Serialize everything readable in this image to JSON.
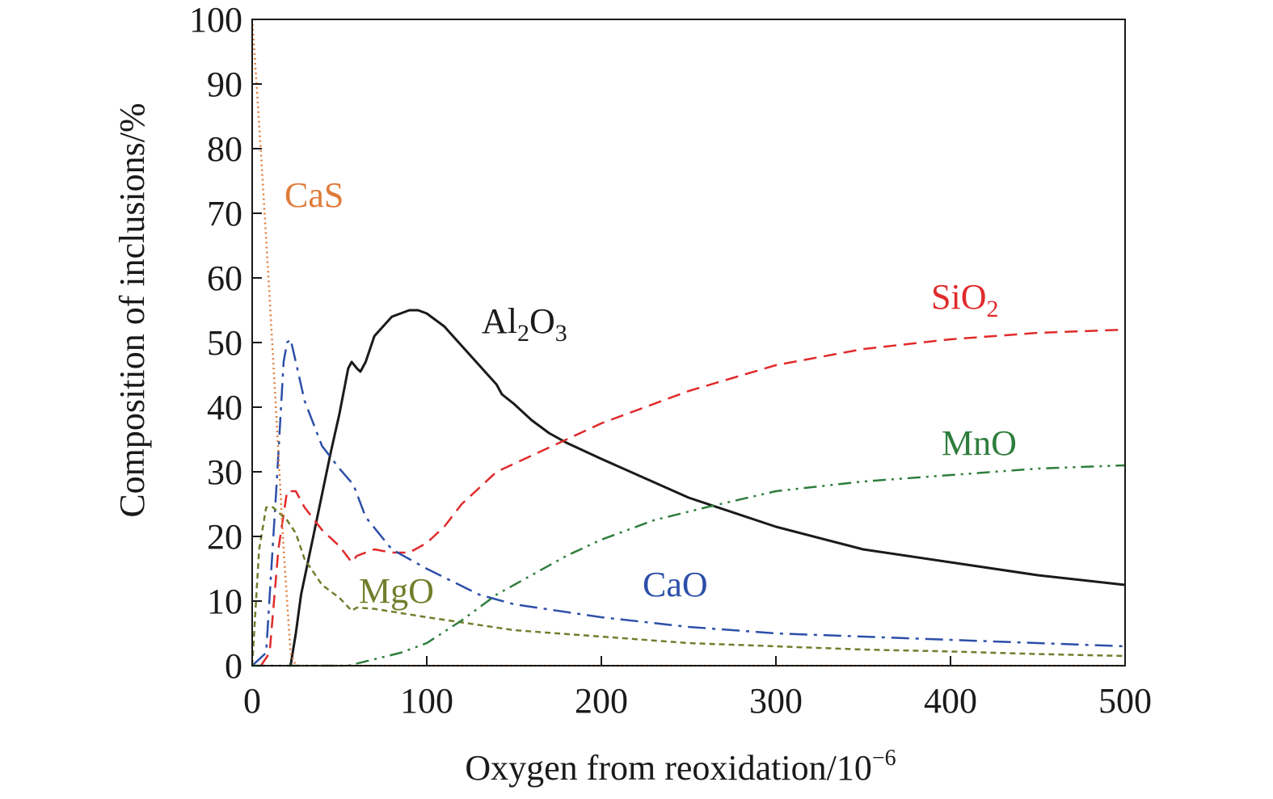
{
  "chart_data": {
    "type": "line",
    "title": "",
    "xlabel": "Oxygen from reoxidation/10",
    "xlabel_sup": "−6",
    "ylabel": "Composition of inclusions/%",
    "xlim": [
      0,
      500
    ],
    "ylim": [
      0,
      100
    ],
    "x_ticks": [
      "0",
      "100",
      "200",
      "300",
      "400",
      "500"
    ],
    "y_ticks": [
      "0",
      "10",
      "20",
      "30",
      "40",
      "50",
      "60",
      "70",
      "80",
      "90",
      "100"
    ],
    "grid": false,
    "legend": "inline labels",
    "series": [
      {
        "name": "Al2O3",
        "label_main": "Al",
        "label_sub1": "2",
        "label_mid": "O",
        "label_sub2": "3",
        "color": "#1a1a1a",
        "dash": "solid",
        "x": [
          22,
          25,
          28,
          35,
          45,
          50,
          55,
          57,
          60,
          62,
          65,
          70,
          80,
          90,
          95,
          100,
          110,
          120,
          130,
          140,
          143,
          150,
          160,
          170,
          180,
          200,
          250,
          300,
          350,
          400,
          450,
          500
        ],
        "y": [
          0,
          5,
          11,
          20,
          33,
          39,
          46,
          47,
          46,
          45.5,
          47,
          51,
          54,
          55,
          55,
          54.5,
          52.5,
          49.5,
          46.5,
          43.5,
          42,
          40.5,
          38,
          36,
          34.5,
          32,
          26,
          21.5,
          18,
          16,
          14,
          12.5
        ]
      },
      {
        "name": "SiO2",
        "label_main": "SiO",
        "label_sub1": "2",
        "color": "#e02a2a",
        "dash": "dashed",
        "x": [
          5,
          10,
          15,
          20,
          25,
          30,
          40,
          50,
          57,
          60,
          70,
          80,
          90,
          100,
          110,
          120,
          130,
          140,
          160,
          180,
          200,
          250,
          300,
          350,
          400,
          450,
          500
        ],
        "y": [
          0,
          2,
          18,
          27,
          27,
          24.5,
          21,
          18.5,
          16,
          17,
          18,
          17.5,
          17.5,
          19,
          21.5,
          25,
          27.5,
          30,
          32.5,
          35,
          37.5,
          42.5,
          46.5,
          49,
          50.5,
          51.5,
          52
        ]
      },
      {
        "name": "CaO",
        "label_main": "CaO",
        "color": "#2c4fa8",
        "dash": "dashdot",
        "x": [
          0,
          8,
          14,
          18,
          20,
          22,
          25,
          30,
          40,
          50,
          58,
          65,
          80,
          100,
          130,
          150,
          200,
          250,
          300,
          350,
          400,
          450,
          500
        ],
        "y": [
          0,
          2,
          28,
          47,
          50,
          50.5,
          47,
          41,
          34,
          30.5,
          28,
          23,
          18,
          15,
          11,
          9.5,
          7.5,
          6,
          5,
          4.5,
          4,
          3.5,
          3
        ]
      },
      {
        "name": "MgO",
        "label_main": "MgO",
        "color": "#6f7f2c",
        "dash": "dotted-dash",
        "x": [
          0,
          4,
          8,
          12,
          16,
          20,
          25,
          30,
          40,
          50,
          57,
          60,
          70,
          100,
          150,
          200,
          250,
          300,
          350,
          400,
          450,
          500
        ],
        "y": [
          0,
          18,
          24.5,
          24.5,
          23.5,
          22.5,
          20.5,
          16.5,
          12.5,
          10.5,
          8.5,
          9,
          8.8,
          7.5,
          5.5,
          4.5,
          3.5,
          3,
          2.5,
          2.2,
          1.8,
          1.5
        ]
      },
      {
        "name": "MnO",
        "label_main": "MnO",
        "color": "#2e7d3c",
        "dash": "dashdotdot",
        "x": [
          0,
          40,
          55,
          70,
          85,
          100,
          120,
          140,
          160,
          180,
          200,
          230,
          260,
          300,
          350,
          400,
          450,
          500
        ],
        "y": [
          0,
          0,
          0,
          1,
          2,
          3.5,
          7,
          11,
          14,
          17,
          19.5,
          22.5,
          24.5,
          27,
          28.5,
          29.5,
          30.5,
          31
        ]
      },
      {
        "name": "CaS",
        "label_main": "CaS",
        "color": "#e07b3a",
        "dash": "dotted",
        "x": [
          0,
          3,
          6,
          10,
          14,
          18,
          22,
          25,
          30,
          100,
          200,
          300,
          400,
          500
        ],
        "y": [
          100,
          88,
          75,
          57,
          38,
          18,
          2,
          0,
          0,
          0,
          0,
          0,
          0,
          0
        ]
      }
    ]
  }
}
